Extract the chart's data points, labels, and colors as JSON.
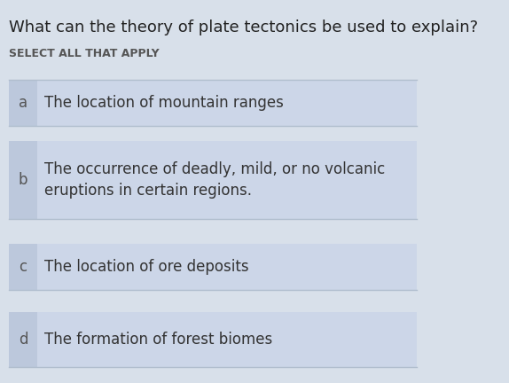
{
  "title": "What can the theory of plate tectonics be used to explain?",
  "subtitle": "SELECT ALL THAT APPLY",
  "options": [
    {
      "label": "a",
      "text": "The location of mountain ranges",
      "multiline": false
    },
    {
      "label": "b",
      "text": "The occurrence of deadly, mild, or no volcanic\neruptions in certain regions.",
      "multiline": true
    },
    {
      "label": "c",
      "text": "The location of ore deposits",
      "multiline": false
    },
    {
      "label": "d",
      "text": "The formation of forest biomes",
      "multiline": false
    }
  ],
  "bg_color": "#d8e0ea",
  "option_bg_color": "#ccd6e8",
  "label_bg_color": "#bcc8dc",
  "outer_bg_color": "#c8d4e4",
  "title_color": "#222222",
  "subtitle_color": "#555555",
  "option_text_color": "#333333",
  "label_text_color": "#555555",
  "title_fontsize": 13,
  "subtitle_fontsize": 9,
  "option_fontsize": 12,
  "label_fontsize": 12,
  "divider_color": "#b0bece"
}
